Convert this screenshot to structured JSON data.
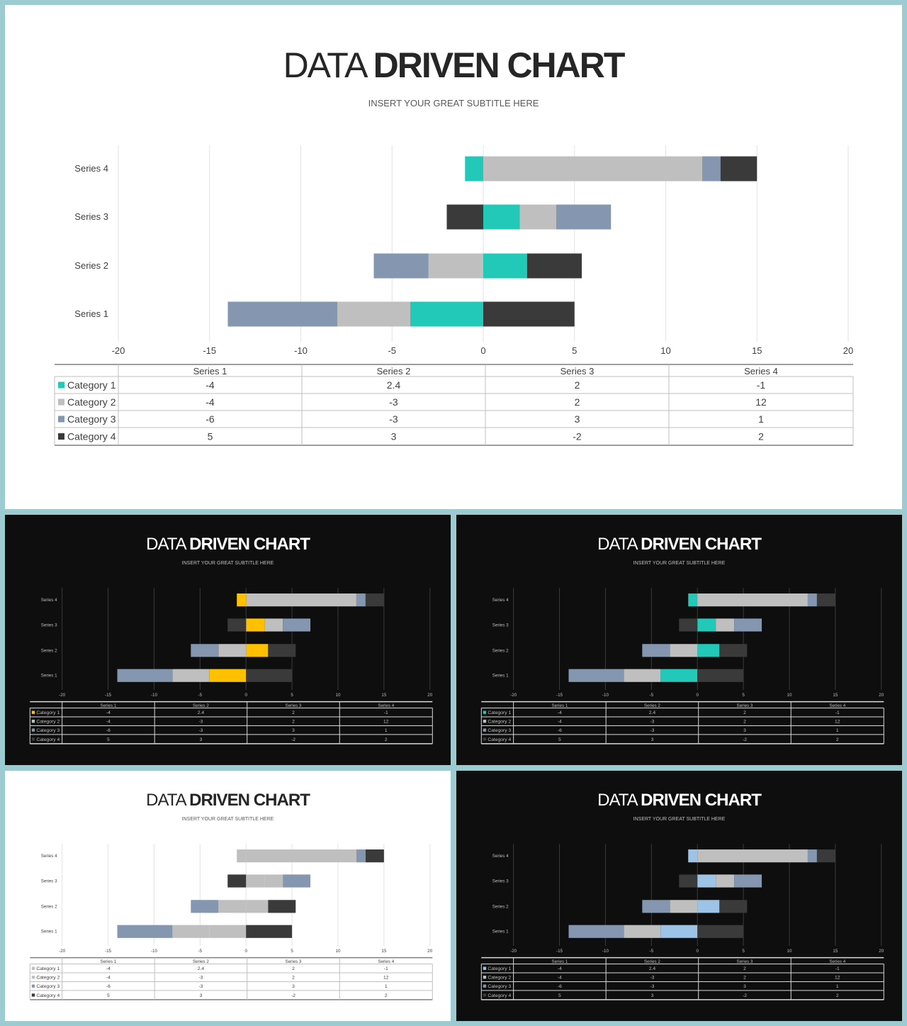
{
  "slides": [
    {
      "title_light": "DATA",
      "title_bold": "DRIVEN CHART",
      "subtitle": "INSERT  YOUR GREAT SUBTITLE HERE"
    },
    {
      "title_light": "DATA",
      "title_bold": "DRIVEN CHART",
      "subtitle": "INSERT  YOUR GREAT SUBTITLE HERE"
    },
    {
      "title_light": "DATA",
      "title_bold": "DRIVEN CHART",
      "subtitle": "INSERT  YOUR GREAT SUBTITLE HERE"
    },
    {
      "title_light": "DATA",
      "title_bold": "DRIVEN CHART",
      "subtitle": "INSERT  YOUR GREAT SUBTITLE HERE"
    },
    {
      "title_light": "DATA",
      "title_bold": "DRIVEN CHART",
      "subtitle": "INSERT  YOUR GREAT SUBTITLE HERE"
    }
  ],
  "chart_data": [
    {
      "type": "bar",
      "orientation": "horizontal",
      "stacked": true,
      "categories": [
        "Series 1",
        "Series 2",
        "Series 3",
        "Series 4"
      ],
      "series": [
        {
          "name": "Category 1",
          "values": [
            -4,
            2.4,
            2,
            -1
          ],
          "color": "#22c8b8"
        },
        {
          "name": "Category 2",
          "values": [
            -4,
            -3,
            2,
            12
          ],
          "color": "#bfbfbf"
        },
        {
          "name": "Category 3",
          "values": [
            -6,
            -3,
            3,
            1
          ],
          "color": "#8496b0"
        },
        {
          "name": "Category 4",
          "values": [
            5,
            3,
            -2,
            2
          ],
          "color": "#3a3a3a"
        }
      ],
      "xlim": [
        -20,
        20
      ],
      "xticks": [
        -20,
        -15,
        -10,
        -5,
        0,
        5,
        10,
        15,
        20
      ],
      "grid": true,
      "data_table": true,
      "theme": "light"
    },
    {
      "type": "bar",
      "orientation": "horizontal",
      "stacked": true,
      "categories": [
        "Series 1",
        "Series 2",
        "Series 3",
        "Series 4"
      ],
      "series": [
        {
          "name": "Category 1",
          "values": [
            -4,
            2.4,
            2,
            -1
          ],
          "color": "#ffc000"
        },
        {
          "name": "Category 2",
          "values": [
            -4,
            -3,
            2,
            12
          ],
          "color": "#bfbfbf"
        },
        {
          "name": "Category 3",
          "values": [
            -6,
            -3,
            3,
            1
          ],
          "color": "#8496b0"
        },
        {
          "name": "Category 4",
          "values": [
            5,
            3,
            -2,
            2
          ],
          "color": "#3a3a3a"
        }
      ],
      "xlim": [
        -20,
        20
      ],
      "xticks": [
        -20,
        -15,
        -10,
        -5,
        0,
        5,
        10,
        15,
        20
      ],
      "grid": true,
      "data_table": true,
      "theme": "dark"
    },
    {
      "type": "bar",
      "orientation": "horizontal",
      "stacked": true,
      "categories": [
        "Series 1",
        "Series 2",
        "Series 3",
        "Series 4"
      ],
      "series": [
        {
          "name": "Category 1",
          "values": [
            -4,
            2.4,
            2,
            -1
          ],
          "color": "#22c8b8"
        },
        {
          "name": "Category 2",
          "values": [
            -4,
            -3,
            2,
            12
          ],
          "color": "#bfbfbf"
        },
        {
          "name": "Category 3",
          "values": [
            -6,
            -3,
            3,
            1
          ],
          "color": "#8496b0"
        },
        {
          "name": "Category 4",
          "values": [
            5,
            3,
            -2,
            2
          ],
          "color": "#3a3a3a"
        }
      ],
      "xlim": [
        -20,
        20
      ],
      "xticks": [
        -20,
        -15,
        -10,
        -5,
        0,
        5,
        10,
        15,
        20
      ],
      "grid": true,
      "data_table": true,
      "theme": "dark"
    },
    {
      "type": "bar",
      "orientation": "horizontal",
      "stacked": true,
      "categories": [
        "Series 1",
        "Series 2",
        "Series 3",
        "Series 4"
      ],
      "series": [
        {
          "name": "Category 1",
          "values": [
            -4,
            2.4,
            2,
            -1
          ],
          "color": "#bfbfbf"
        },
        {
          "name": "Category 2",
          "values": [
            -4,
            -3,
            2,
            12
          ],
          "color": "#bfbfbf"
        },
        {
          "name": "Category 3",
          "values": [
            -6,
            -3,
            3,
            1
          ],
          "color": "#8496b0"
        },
        {
          "name": "Category 4",
          "values": [
            5,
            3,
            -2,
            2
          ],
          "color": "#3a3a3a"
        }
      ],
      "xlim": [
        -20,
        20
      ],
      "xticks": [
        -20,
        -15,
        -10,
        -5,
        0,
        5,
        10,
        15,
        20
      ],
      "grid": true,
      "data_table": true,
      "theme": "light"
    },
    {
      "type": "bar",
      "orientation": "horizontal",
      "stacked": true,
      "categories": [
        "Series 1",
        "Series 2",
        "Series 3",
        "Series 4"
      ],
      "series": [
        {
          "name": "Category 1",
          "values": [
            -4,
            2.4,
            2,
            -1
          ],
          "color": "#9dc3e6"
        },
        {
          "name": "Category 2",
          "values": [
            -4,
            -3,
            2,
            12
          ],
          "color": "#bfbfbf"
        },
        {
          "name": "Category 3",
          "values": [
            -6,
            -3,
            3,
            1
          ],
          "color": "#8496b0"
        },
        {
          "name": "Category 4",
          "values": [
            5,
            3,
            -2,
            2
          ],
          "color": "#3a3a3a"
        }
      ],
      "xlim": [
        -20,
        20
      ],
      "xticks": [
        -20,
        -15,
        -10,
        -5,
        0,
        5,
        10,
        15,
        20
      ],
      "grid": true,
      "data_table": true,
      "theme": "dark"
    }
  ]
}
